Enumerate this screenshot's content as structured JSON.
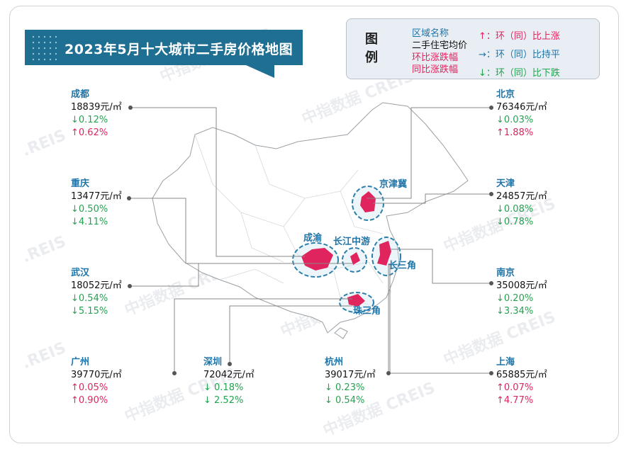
{
  "title": "2023年5月十大城市二手房价格地图",
  "legend": {
    "heading": "图例",
    "region_name": "区域名称",
    "avg_price": "二手住宅均价",
    "mom": "环比涨跌幅",
    "yoy": "同比涨跌幅",
    "rise": "↑：环（同）比上涨",
    "flat": "→：环（同）比持平",
    "fall": "↓：环（同）比下跌"
  },
  "regions": {
    "jingjinji": "京津冀",
    "chengyu": "成渝",
    "changjiang": "长江中游",
    "changsanjiao": "长三角",
    "zhusanjiao": "珠三角"
  },
  "watermark": "中指数据 CREIS",
  "watermark_short": ".REIS",
  "cities": {
    "chengdu": {
      "name": "成都",
      "price": "18839元/㎡",
      "mom": "↓0.12%",
      "yoy": "↑0.62%"
    },
    "chongqing": {
      "name": "重庆",
      "price": "13477元/㎡",
      "mom": "↓0.50%",
      "yoy": "↓4.11%"
    },
    "wuhan": {
      "name": "武汉",
      "price": "18052元/㎡",
      "mom": "↓0.54%",
      "yoy": "↓5.15%"
    },
    "guangzhou": {
      "name": "广州",
      "price": "39770元/㎡",
      "mom": "↑0.05%",
      "yoy": "↑0.90%"
    },
    "shenzhen": {
      "name": "深圳",
      "price": "72042元/㎡",
      "mom": "↓ 0.18%",
      "yoy": "↓ 2.52%"
    },
    "hangzhou": {
      "name": "杭州",
      "price": "39017元/㎡",
      "mom": "↓ 0.23%",
      "yoy": "↓ 0.54%"
    },
    "beijing": {
      "name": "北京",
      "price": "76346元/㎡",
      "mom": "↓0.03%",
      "yoy": "↑1.88%"
    },
    "tianjin": {
      "name": "天津",
      "price": "24857元/㎡",
      "mom": "↓0.08%",
      "yoy": "↓0.78%"
    },
    "nanjing": {
      "name": "南京",
      "price": "35008元/㎡",
      "mom": "↓0.20%",
      "yoy": "↓3.34%"
    },
    "shanghai": {
      "name": "上海",
      "price": "65885元/㎡",
      "mom": "↑0.07%",
      "yoy": "↑4.77%"
    }
  }
}
